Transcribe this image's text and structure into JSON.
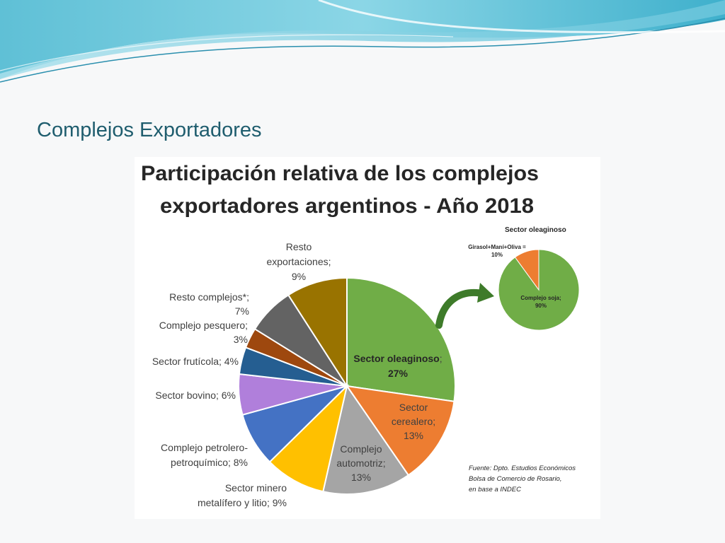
{
  "slide": {
    "title": "Complejos Exportadores"
  },
  "chart_data": [
    {
      "type": "pie",
      "title": "Participación relativa de los complejos exportadores argentinos - Año 2018",
      "title_lines": [
        "Participación relativa de los complejos",
        "exportadores argentinos - Año 2018"
      ],
      "slices": [
        {
          "name": "Sector oleaginoso",
          "value": 27,
          "color": "#70ad47",
          "label_lines": [
            {
              "a": "Sector oleaginoso",
              "b": ";"
            },
            {
              "a": "27%",
              "b": ""
            }
          ]
        },
        {
          "name": "Sector cerealero",
          "value": 13,
          "color": "#ed7d31",
          "label_lines": [
            "Sector",
            "cerealero;",
            "13%"
          ]
        },
        {
          "name": "Complejo automotriz",
          "value": 13,
          "color": "#a5a5a5",
          "label_lines": [
            "Complejo",
            "automotriz;",
            "13%"
          ]
        },
        {
          "name": "Sector minero metalífero y litio",
          "value": 9,
          "color": "#ffc000",
          "label_lines": [
            "Sector minero",
            "metalífero y litio; 9%"
          ]
        },
        {
          "name": "Complejo petrolero-petroquímico",
          "value": 8,
          "color": "#4472c4",
          "label_lines": [
            "Complejo petrolero-",
            "petroquímico; 8%"
          ]
        },
        {
          "name": "Sector bovino",
          "value": 6,
          "color": "#b07fdb",
          "label_lines": [
            "Sector bovino; 6%"
          ]
        },
        {
          "name": "Sector frutícola",
          "value": 4,
          "color": "#255e91",
          "label_lines": [
            "Sector frutícola; 4%"
          ]
        },
        {
          "name": "Complejo pesquero",
          "value": 3,
          "color": "#9e480e",
          "label_lines": [
            "Complejo pesquero;",
            "3%"
          ]
        },
        {
          "name": "Resto complejos*",
          "value": 7,
          "color": "#636363",
          "label_lines": [
            "Resto complejos*;",
            "7%"
          ]
        },
        {
          "name": "Resto exportaciones",
          "value": 9,
          "color": "#997300",
          "label_lines": [
            "Resto",
            "exportaciones;",
            "9%"
          ]
        }
      ],
      "source_lines": [
        "Fuente: Dpto. Estudios Económicos",
        "Bolsa de Comercio de Rosario,",
        "en base a INDEC"
      ]
    },
    {
      "type": "pie",
      "title": "Sector oleaginoso",
      "slices": [
        {
          "name": "Complejo soja",
          "value": 90,
          "color": "#70ad47",
          "label_lines": [
            "Complejo soja;",
            "90%"
          ]
        },
        {
          "name": "Girasol+Maní+Oliva",
          "value": 10,
          "color": "#ed7d31",
          "label_lines": [
            "Girasol+Maní+Oliva =",
            "10%"
          ]
        }
      ]
    }
  ]
}
